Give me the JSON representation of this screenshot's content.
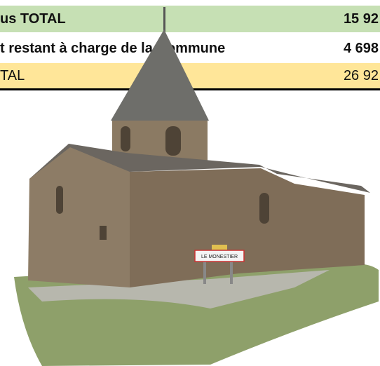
{
  "table": {
    "rows": [
      [
        "us TOTAL",
        "15 92"
      ],
      [
        "t restant à charge de la Commune",
        "4 698"
      ],
      [
        "TAL",
        "26 92"
      ]
    ]
  },
  "image": {
    "sign": "LE MONESTIER"
  }
}
